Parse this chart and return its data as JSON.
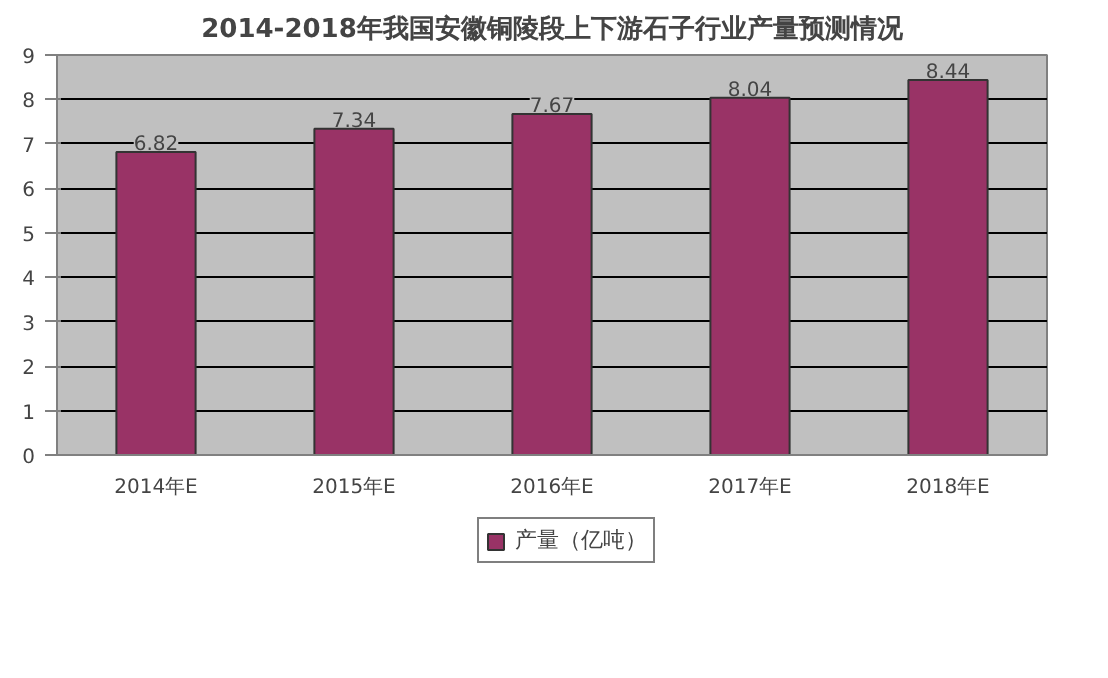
{
  "chart_data": {
    "type": "bar",
    "title": "2014-2018年我国安徽铜陵段上下游石子行业产量预测情况",
    "categories": [
      "2014年E",
      "2015年E",
      "2016年E",
      "2017年E",
      "2018年E"
    ],
    "series": [
      {
        "name": "产量（亿吨）",
        "color": "#993366",
        "values": [
          6.82,
          7.34,
          7.67,
          8.04,
          8.44
        ]
      }
    ],
    "ylim": [
      0,
      9
    ],
    "yticks": [
      0,
      1,
      2,
      3,
      4,
      5,
      6,
      7,
      8,
      9
    ],
    "grid": "y",
    "legend": "bottom",
    "data_labels": true
  }
}
